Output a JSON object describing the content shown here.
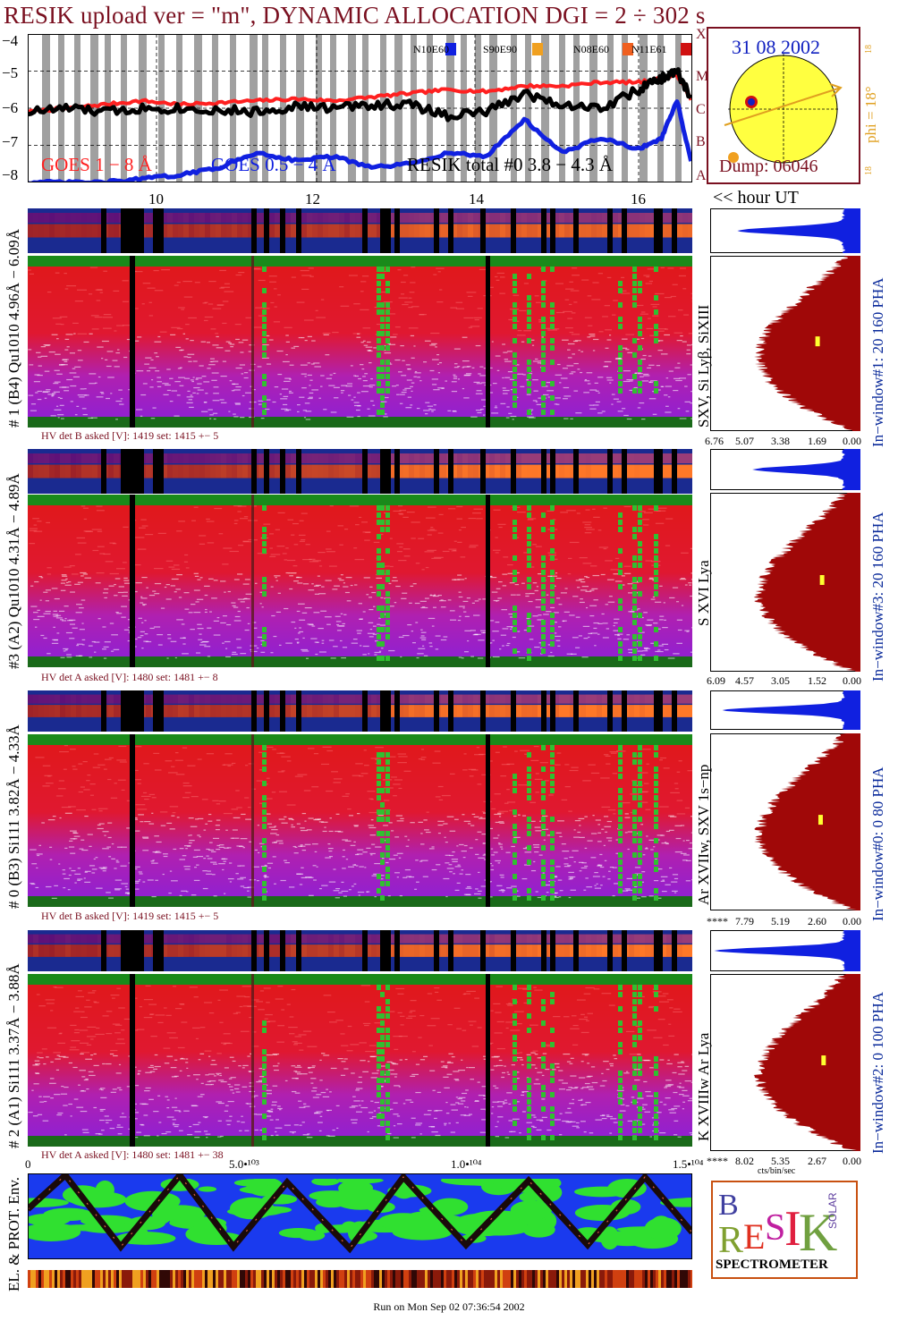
{
  "header": {
    "title": "RESIK upload ver = \"m\", DYNAMIC ALLOCATION  DGI =   2 ÷ 302 s"
  },
  "goes_panel": {
    "yticks": [
      "−4",
      "−5",
      "−6",
      "−7",
      "−8"
    ],
    "class_letters": [
      "X",
      "M",
      "C",
      "B",
      "A"
    ],
    "region_labels": [
      "N10E60",
      "S90E90",
      "N08E60",
      "N11E61"
    ],
    "legend": {
      "goes_1_8": "GOES 1 − 8 Å",
      "goes_05_4": "GOES 0.5 − 4 Å",
      "resik_total": "RESIK total #0  3.8 − 4.3 Å"
    },
    "hour_ticks": [
      "10",
      "12",
      "14",
      "16"
    ],
    "hour_label": "<< hour UT"
  },
  "sun_panel": {
    "date": "31 08 2002",
    "phi": "phi = 18°",
    "phi_small_top": "18",
    "phi_small_bottom": "18",
    "dump": "Dump: 06046"
  },
  "detectors": [
    {
      "label": "# 1 (B4) Qu1010 4.96Å − 6.09Å",
      "hv": "HV det B asked [V]:  1419 set:  1415  +−   5",
      "lines": "SXV, Si Lyβ, SiXIII",
      "window": "In−window#1:   20 160  PHA",
      "axis": [
        "6.76",
        "5.07",
        "3.38",
        "1.69",
        "0.00"
      ]
    },
    {
      "label": "#3 (A2) Qu1010  4.31Å − 4.89Å",
      "hv": "HV det A asked [V]:  1480 set:  1481  +−   8",
      "lines": "S XVI Lya",
      "window": "In−window#3:   20 160  PHA",
      "axis": [
        "6.09",
        "4.57",
        "3.05",
        "1.52",
        "0.00"
      ]
    },
    {
      "label": "# 0 (B3) Si111  3.82Å − 4.33Å",
      "hv": "HV det B asked [V]:  1419 set:  1415  +−   5",
      "lines": "Ar XVIIw,  SXV  1s−np",
      "window": "In−window#0:    0   80  PHA",
      "axis": [
        "****",
        "7.79",
        "5.19",
        "2.60",
        "0.00"
      ]
    },
    {
      "label": "# 2 (A1) Si111  3.37Å −  3.88Å",
      "hv": "HV det A asked [V]:  1480 set:  1481  +−   38",
      "lines": "K XVIIIw  Ar Lya",
      "window": "In−window#2:    0  100  PHA",
      "axis": [
        "****",
        "8.02",
        "5.35",
        "2.67",
        "0.00"
      ],
      "axis_unit": "cts/bin/sec"
    }
  ],
  "env_panel": {
    "label": "EL. & PROT. Env.",
    "xticks": [
      "0",
      "5.0•¹⁰³",
      "1.0•¹⁰⁴",
      "1.5•¹⁰⁴"
    ]
  },
  "logo": {
    "text": "SPECTROMETER",
    "letters": [
      "B",
      "R",
      "E",
      "S",
      "I",
      "K",
      "SOLAR"
    ]
  },
  "footer": "Run on Mon Sep 02 07:36:54 2002",
  "chart_data": {
    "type": "line",
    "x_label": "hour UT",
    "xlim": [
      8.0,
      16.7
    ],
    "ylim": [
      -8,
      -4
    ],
    "yticks": [
      -4,
      -5,
      -6,
      -7,
      -8
    ],
    "grid": true,
    "series": [
      {
        "name": "GOES 1 − 8 Å",
        "color": "#ff2020",
        "x": [
          8.0,
          8.5,
          9.0,
          9.5,
          10.0,
          10.5,
          11.0,
          11.5,
          12.0,
          12.5,
          13.0,
          13.5,
          14.0,
          14.5,
          15.0,
          15.5,
          16.0,
          16.3,
          16.5,
          16.7
        ],
        "y": [
          -6.1,
          -6.0,
          -5.9,
          -5.8,
          -5.9,
          -5.85,
          -5.8,
          -5.75,
          -5.8,
          -5.7,
          -5.6,
          -5.5,
          -5.55,
          -5.4,
          -5.4,
          -5.3,
          -5.3,
          -5.2,
          -5.1,
          -5.8
        ]
      },
      {
        "name": "GOES 0.5 − 4 Å",
        "color": "#1020e0",
        "x": [
          8.0,
          8.5,
          9.0,
          9.5,
          10.0,
          10.5,
          11.0,
          11.5,
          12.0,
          12.5,
          13.0,
          13.5,
          14.0,
          14.5,
          15.0,
          15.5,
          16.0,
          16.3,
          16.5,
          16.7
        ],
        "y": [
          -8.0,
          -8.0,
          -8.0,
          -7.9,
          -7.8,
          -7.6,
          -7.2,
          -7.4,
          -7.3,
          -7.6,
          -7.5,
          -7.2,
          -7.3,
          -6.3,
          -7.2,
          -6.8,
          -7.1,
          -6.8,
          -5.8,
          -7.6
        ]
      },
      {
        "name": "RESIK total #0  3.8 − 4.3 Å",
        "color": "#000000",
        "x": [
          8.0,
          8.5,
          9.0,
          9.5,
          10.0,
          10.5,
          11.0,
          11.5,
          12.0,
          12.5,
          13.0,
          13.5,
          14.0,
          14.5,
          15.0,
          15.5,
          16.0,
          16.3,
          16.5,
          16.7
        ],
        "y": [
          -6.1,
          -6.0,
          -6.1,
          -6.0,
          -6.0,
          -6.05,
          -6.1,
          -5.95,
          -6.0,
          -5.9,
          -5.9,
          -6.2,
          -6.1,
          -5.6,
          -5.9,
          -6.0,
          -5.5,
          -5.2,
          -5.0,
          -5.8
        ]
      }
    ]
  }
}
